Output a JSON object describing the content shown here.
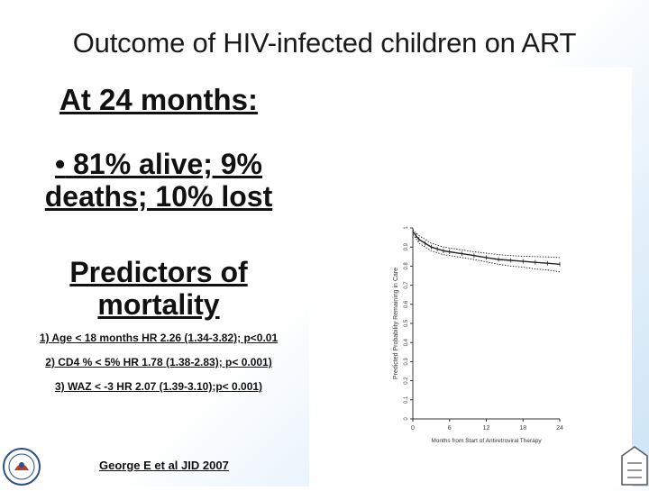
{
  "slide": {
    "title": "Outcome of HIV-infected children on ART",
    "heading": "At 24 months:",
    "bullet_mark": "•",
    "bullet_text": "81% alive;  9% deaths; 10% lost",
    "predictors_title": "Predictors of mortality",
    "predictors": [
      "1) Age < 18 months HR 2.26 (1.34-3.82); p<0.01",
      "2) CD4 % < 5% HR 1.78 (1.38-2.83); p< 0.001)",
      "3) WAZ < -3 HR 2.07 (1.39-3.10);p< 0.001)"
    ],
    "citation": "George E et al JID 2007"
  },
  "chart_data": {
    "type": "line",
    "title": "",
    "xlabel": "Months from Start of Antiretroviral Therapy",
    "ylabel": "Predicted Probability Remaining in Care",
    "xlim": [
      0,
      24
    ],
    "ylim": [
      0,
      1.0
    ],
    "x_ticks": [
      0,
      6,
      12,
      18,
      24
    ],
    "x_tick_labels": [
      "0",
      "6",
      "12",
      "18",
      "24"
    ],
    "y_ticks": [
      0,
      0.1,
      0.2,
      0.3,
      0.4,
      0.5,
      0.6,
      0.7,
      0.8,
      0.9,
      1.0
    ],
    "y_tick_labels": [
      "0",
      "0.1",
      "0.2",
      "0.3",
      "0.4",
      "0.5",
      "0.6",
      "0.7",
      "0.8",
      "0.9",
      "1"
    ],
    "series": [
      {
        "name": "Estimate",
        "style": "solid",
        "x": [
          0,
          0.5,
          1,
          2,
          3,
          4,
          5,
          6,
          8,
          10,
          12,
          14,
          16,
          18,
          20,
          22,
          24
        ],
        "y": [
          0.98,
          0.96,
          0.94,
          0.92,
          0.9,
          0.89,
          0.88,
          0.875,
          0.865,
          0.855,
          0.845,
          0.835,
          0.83,
          0.825,
          0.82,
          0.815,
          0.81
        ]
      },
      {
        "name": "Upper 95% CI",
        "style": "dotted",
        "x": [
          0,
          0.5,
          1,
          2,
          3,
          4,
          5,
          6,
          8,
          10,
          12,
          14,
          16,
          18,
          20,
          22,
          24
        ],
        "y": [
          0.99,
          0.975,
          0.96,
          0.94,
          0.92,
          0.91,
          0.9,
          0.895,
          0.885,
          0.875,
          0.868,
          0.86,
          0.855,
          0.852,
          0.85,
          0.848,
          0.845
        ]
      },
      {
        "name": "Lower 95% CI",
        "style": "dotted",
        "x": [
          0,
          0.5,
          1,
          2,
          3,
          4,
          5,
          6,
          8,
          10,
          12,
          14,
          16,
          18,
          20,
          22,
          24
        ],
        "y": [
          0.965,
          0.945,
          0.92,
          0.9,
          0.88,
          0.87,
          0.86,
          0.855,
          0.845,
          0.835,
          0.822,
          0.81,
          0.8,
          0.795,
          0.785,
          0.78,
          0.77
        ]
      }
    ]
  }
}
